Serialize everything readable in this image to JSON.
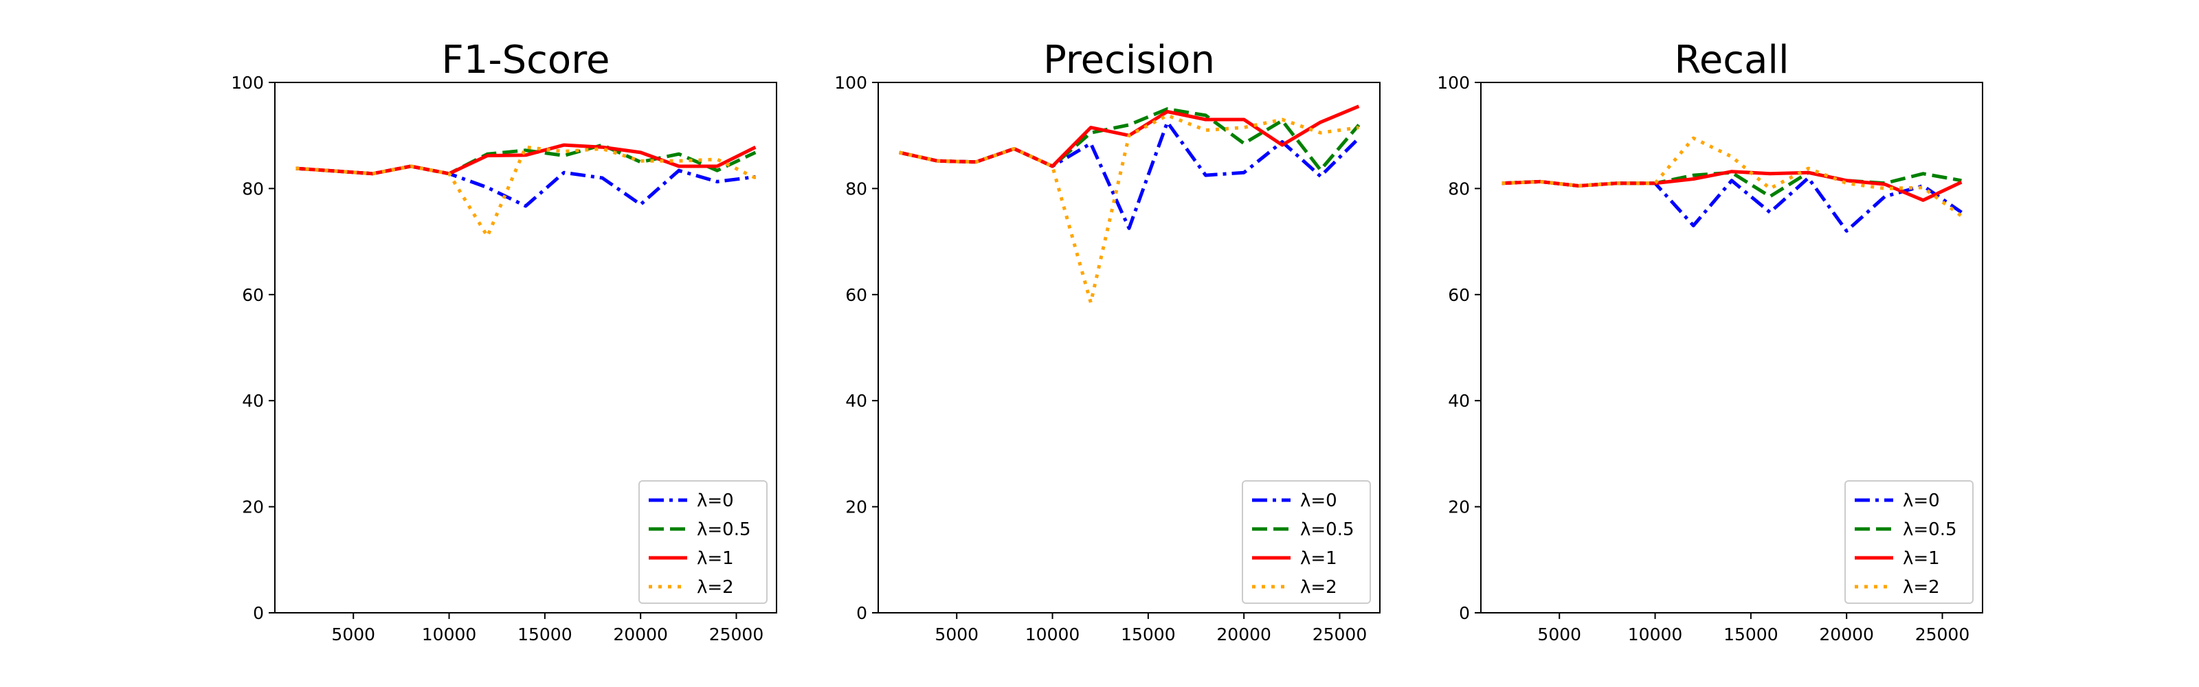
{
  "chart_data": [
    {
      "type": "line",
      "title": "F1-Score",
      "xlabel": "",
      "ylabel": "",
      "xlim": [
        900,
        27100
      ],
      "ylim": [
        0,
        100
      ],
      "xticks": [
        5000,
        10000,
        15000,
        20000,
        25000
      ],
      "yticks": [
        0,
        20,
        40,
        60,
        80,
        100
      ],
      "grid": false,
      "legend_position": "lower-right",
      "x": [
        2000,
        4000,
        6000,
        8000,
        10000,
        12000,
        14000,
        16000,
        18000,
        20000,
        22000,
        24000,
        26000
      ],
      "series": [
        {
          "name": "λ=0",
          "color": "#0000ff",
          "dash": "dashdot",
          "values": [
            83.8,
            83.3,
            82.8,
            84.2,
            82.8,
            80.2,
            76.7,
            83.0,
            82.0,
            77.0,
            83.4,
            81.3,
            82.2
          ]
        },
        {
          "name": "λ=0.5",
          "color": "#008000",
          "dash": "dashed",
          "values": [
            83.8,
            83.3,
            82.8,
            84.2,
            82.8,
            86.5,
            87.2,
            86.2,
            88.2,
            85.0,
            86.5,
            83.4,
            86.8
          ]
        },
        {
          "name": "λ=1",
          "color": "#ff0000",
          "dash": "solid",
          "values": [
            83.8,
            83.3,
            82.8,
            84.2,
            82.8,
            86.2,
            86.3,
            88.2,
            87.8,
            86.8,
            84.2,
            84.2,
            87.8
          ]
        },
        {
          "name": "λ=2",
          "color": "#ffa500",
          "dash": "dotted",
          "values": [
            83.8,
            83.3,
            82.8,
            84.2,
            82.8,
            71.0,
            87.8,
            87.0,
            87.5,
            85.2,
            85.2,
            85.5,
            82.0
          ]
        }
      ]
    },
    {
      "type": "line",
      "title": "Precision",
      "xlabel": "",
      "ylabel": "",
      "xlim": [
        900,
        27100
      ],
      "ylim": [
        0,
        100
      ],
      "xticks": [
        5000,
        10000,
        15000,
        20000,
        25000
      ],
      "yticks": [
        0,
        20,
        40,
        60,
        80,
        100
      ],
      "grid": false,
      "legend_position": "lower-right",
      "x": [
        2000,
        4000,
        6000,
        8000,
        10000,
        12000,
        14000,
        16000,
        18000,
        20000,
        22000,
        24000,
        26000
      ],
      "series": [
        {
          "name": "λ=0",
          "color": "#0000ff",
          "dash": "dashdot",
          "values": [
            86.8,
            85.2,
            85.0,
            87.5,
            84.2,
            88.5,
            72.5,
            92.5,
            82.5,
            83.0,
            88.8,
            82.3,
            89.5
          ]
        },
        {
          "name": "λ=0.5",
          "color": "#008000",
          "dash": "dashed",
          "values": [
            86.8,
            85.2,
            85.0,
            87.5,
            84.2,
            90.5,
            92.0,
            95.0,
            93.8,
            88.5,
            92.8,
            83.5,
            92.0
          ]
        },
        {
          "name": "λ=1",
          "color": "#ff0000",
          "dash": "solid",
          "values": [
            86.8,
            85.2,
            85.0,
            87.5,
            84.2,
            91.5,
            90.0,
            94.5,
            93.0,
            93.0,
            88.2,
            92.5,
            95.5
          ]
        },
        {
          "name": "λ=2",
          "color": "#ffa500",
          "dash": "dotted",
          "values": [
            86.8,
            85.2,
            85.0,
            87.5,
            84.2,
            58.5,
            90.0,
            93.8,
            91.0,
            91.5,
            93.0,
            90.5,
            91.5
          ]
        }
      ]
    },
    {
      "type": "line",
      "title": "Recall",
      "xlabel": "",
      "ylabel": "",
      "xlim": [
        900,
        27100
      ],
      "ylim": [
        0,
        100
      ],
      "xticks": [
        5000,
        10000,
        15000,
        20000,
        25000
      ],
      "yticks": [
        0,
        20,
        40,
        60,
        80,
        100
      ],
      "grid": false,
      "legend_position": "lower-right",
      "x": [
        2000,
        4000,
        6000,
        8000,
        10000,
        12000,
        14000,
        16000,
        18000,
        20000,
        22000,
        24000,
        26000
      ],
      "series": [
        {
          "name": "λ=0",
          "color": "#0000ff",
          "dash": "dashdot",
          "values": [
            81.0,
            81.3,
            80.5,
            81.0,
            81.0,
            73.0,
            81.5,
            75.5,
            82.0,
            72.0,
            78.5,
            80.5,
            75.5
          ]
        },
        {
          "name": "λ=0.5",
          "color": "#008000",
          "dash": "dashed",
          "values": [
            81.0,
            81.3,
            80.5,
            81.0,
            81.0,
            82.5,
            83.0,
            78.5,
            83.0,
            81.5,
            81.0,
            82.8,
            81.5
          ]
        },
        {
          "name": "λ=1",
          "color": "#ff0000",
          "dash": "solid",
          "values": [
            81.0,
            81.3,
            80.5,
            81.0,
            81.0,
            81.8,
            83.2,
            82.8,
            83.0,
            81.5,
            80.8,
            77.8,
            81.2
          ]
        },
        {
          "name": "λ=2",
          "color": "#ffa500",
          "dash": "dotted",
          "values": [
            81.0,
            81.3,
            80.5,
            81.0,
            81.0,
            89.5,
            86.0,
            80.0,
            83.8,
            81.0,
            80.0,
            80.2,
            74.8
          ]
        }
      ]
    }
  ]
}
